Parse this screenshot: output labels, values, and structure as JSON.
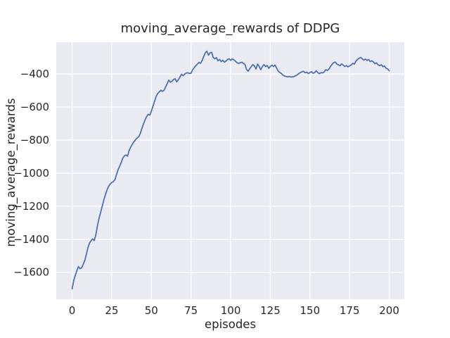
{
  "chart_data": {
    "type": "line",
    "title": "moving_average_rewards of DDPG",
    "xlabel": "episodes",
    "ylabel": "moving_average_rewards",
    "legend": null,
    "grid": true,
    "xlim": [
      -10,
      209.5
    ],
    "ylim": [
      -1763,
      -208
    ],
    "xticks": [
      0,
      25,
      50,
      75,
      100,
      125,
      150,
      175,
      200
    ],
    "yticks": [
      -400,
      -600,
      -800,
      -1000,
      -1200,
      -1400,
      -1600
    ],
    "colors": {
      "line": "#4C72B0",
      "plot_bg": "#EAEAF2",
      "grid": "#FFFFFF",
      "figure_bg": "#FFFFFF",
      "text": "#262626"
    },
    "series_name": "moving_average_rewards",
    "x_start": 0,
    "x_step": 1,
    "values": [
      -1700,
      -1650,
      -1618,
      -1590,
      -1565,
      -1578,
      -1572,
      -1552,
      -1528,
      -1492,
      -1450,
      -1422,
      -1408,
      -1398,
      -1408,
      -1370,
      -1318,
      -1272,
      -1238,
      -1200,
      -1162,
      -1130,
      -1102,
      -1080,
      -1066,
      -1057,
      -1051,
      -1040,
      -1008,
      -980,
      -958,
      -935,
      -908,
      -895,
      -890,
      -897,
      -862,
      -842,
      -825,
      -810,
      -797,
      -788,
      -780,
      -760,
      -730,
      -703,
      -678,
      -658,
      -644,
      -649,
      -625,
      -595,
      -565,
      -535,
      -518,
      -508,
      -499,
      -505,
      -499,
      -478,
      -458,
      -437,
      -450,
      -443,
      -434,
      -429,
      -448,
      -435,
      -419,
      -402,
      -410,
      -401,
      -394,
      -393,
      -397,
      -395,
      -375,
      -362,
      -350,
      -340,
      -330,
      -336,
      -318,
      -295,
      -272,
      -262,
      -286,
      -272,
      -269,
      -300,
      -308,
      -301,
      -320,
      -312,
      -325,
      -316,
      -328,
      -322,
      -313,
      -308,
      -318,
      -308,
      -315,
      -322,
      -332,
      -336,
      -332,
      -329,
      -336,
      -343,
      -372,
      -383,
      -368,
      -355,
      -343,
      -352,
      -369,
      -340,
      -355,
      -374,
      -355,
      -343,
      -355,
      -348,
      -366,
      -355,
      -346,
      -355,
      -346,
      -365,
      -383,
      -391,
      -397,
      -407,
      -412,
      -415,
      -417,
      -415,
      -418,
      -417,
      -415,
      -411,
      -405,
      -397,
      -391,
      -386,
      -384,
      -393,
      -389,
      -397,
      -391,
      -386,
      -396,
      -391,
      -380,
      -392,
      -398,
      -391,
      -394,
      -387,
      -374,
      -379,
      -370,
      -354,
      -341,
      -331,
      -328,
      -340,
      -345,
      -350,
      -339,
      -347,
      -355,
      -349,
      -357,
      -351,
      -345,
      -336,
      -340,
      -322,
      -312,
      -305,
      -300,
      -308,
      -316,
      -310,
      -318,
      -312,
      -325,
      -320,
      -327,
      -338,
      -333,
      -345,
      -350,
      -344,
      -356,
      -352,
      -365,
      -370,
      -380
    ]
  }
}
